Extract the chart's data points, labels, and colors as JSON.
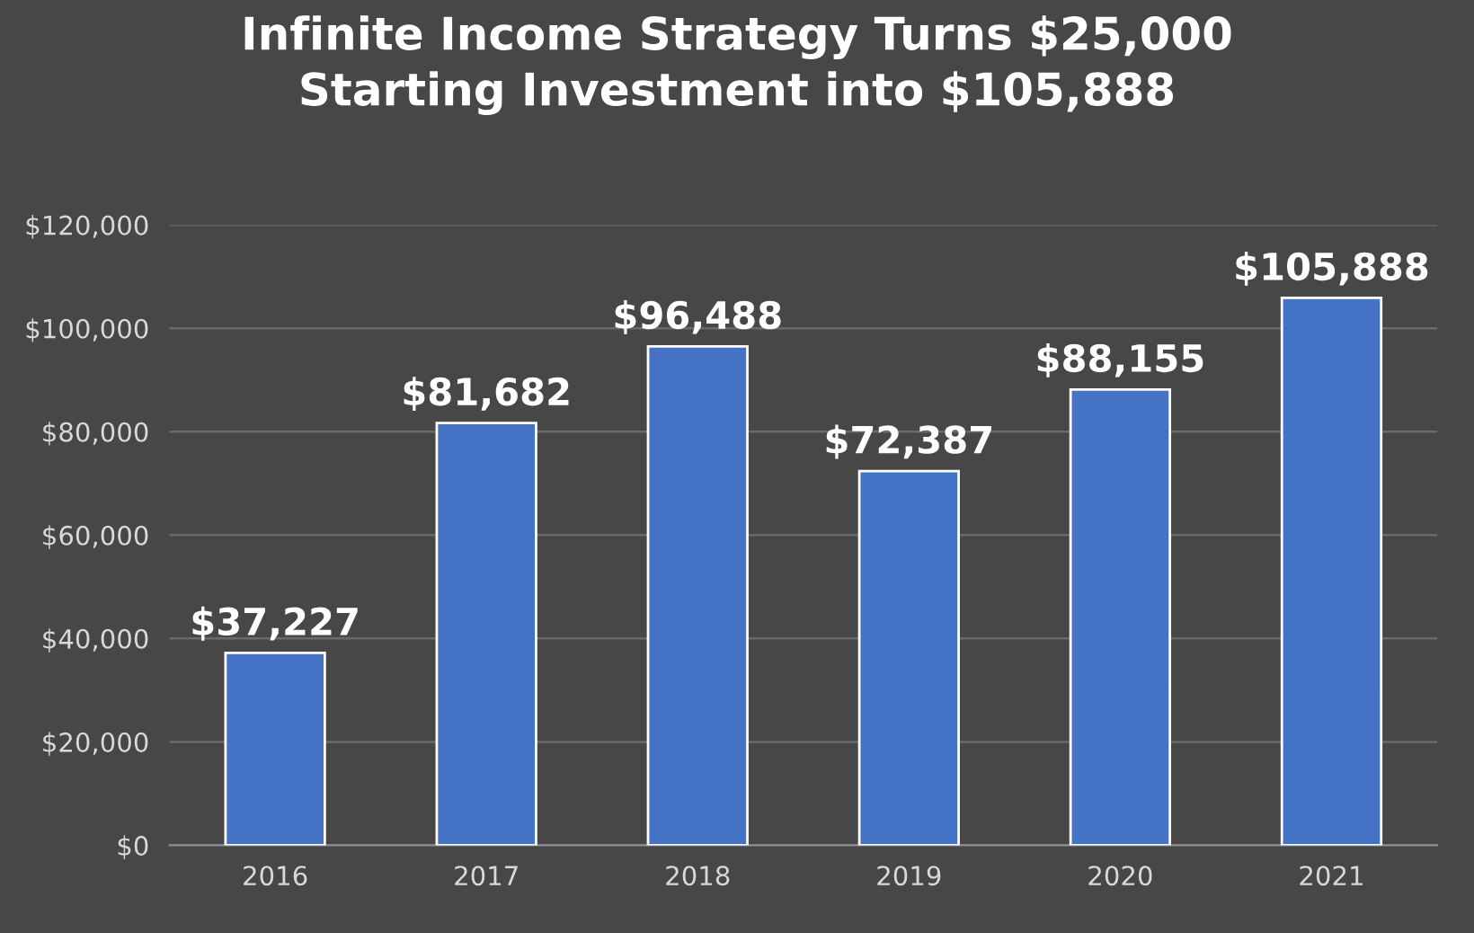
{
  "chart_data": {
    "type": "bar",
    "title": "Infinite Income Strategy Turns $25,000\nStarting Investment into $105,888",
    "categories": [
      "2016",
      "2017",
      "2018",
      "2019",
      "2020",
      "2021"
    ],
    "values": [
      37227,
      81682,
      96488,
      72387,
      88155,
      105888
    ],
    "value_labels": [
      "$37,227",
      "$81,682",
      "$96,488",
      "$72,387",
      "$88,155",
      "$105,888"
    ],
    "color": "#4472c4",
    "ylim": [
      0,
      120000
    ],
    "yticks": [
      {
        "value": 0,
        "label": "$0"
      },
      {
        "value": 20000,
        "label": "$20,000"
      },
      {
        "value": 40000,
        "label": "$40,000"
      },
      {
        "value": 60000,
        "label": "$60,000"
      },
      {
        "value": 80000,
        "label": "$80,000"
      },
      {
        "value": 100000,
        "label": "$100,000"
      },
      {
        "value": 120000,
        "label": "$120,000"
      }
    ],
    "grid": "y"
  }
}
